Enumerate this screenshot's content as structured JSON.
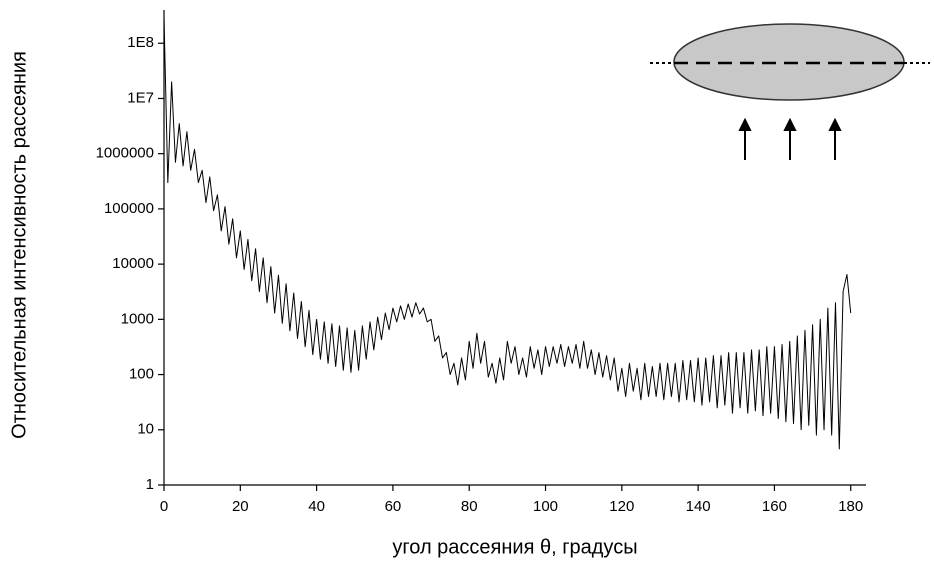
{
  "chart_data": {
    "type": "line",
    "x_label": "угол рассеяния θ, градусы",
    "y_label": "Относительная интенсивность рассеяния",
    "log_y": true,
    "grid": false,
    "x": [
      0,
      1,
      2,
      3,
      4,
      5,
      6,
      7,
      8,
      9,
      10,
      11,
      12,
      13,
      14,
      15,
      16,
      17,
      18,
      19,
      20,
      21,
      22,
      23,
      24,
      25,
      26,
      27,
      28,
      29,
      30,
      31,
      32,
      33,
      34,
      35,
      36,
      37,
      38,
      39,
      40,
      41,
      42,
      43,
      44,
      45,
      46,
      47,
      48,
      49,
      50,
      51,
      52,
      53,
      54,
      55,
      56,
      57,
      58,
      59,
      60,
      61,
      62,
      63,
      64,
      65,
      66,
      67,
      68,
      69,
      70,
      71,
      72,
      73,
      74,
      75,
      76,
      77,
      78,
      79,
      80,
      81,
      82,
      83,
      84,
      85,
      86,
      87,
      88,
      89,
      90,
      91,
      92,
      93,
      94,
      95,
      96,
      97,
      98,
      99,
      100,
      101,
      102,
      103,
      104,
      105,
      106,
      107,
      108,
      109,
      110,
      111,
      112,
      113,
      114,
      115,
      116,
      117,
      118,
      119,
      120,
      121,
      122,
      123,
      124,
      125,
      126,
      127,
      128,
      129,
      130,
      131,
      132,
      133,
      134,
      135,
      136,
      137,
      138,
      139,
      140,
      141,
      142,
      143,
      144,
      145,
      146,
      147,
      148,
      149,
      150,
      151,
      152,
      153,
      154,
      155,
      156,
      157,
      158,
      159,
      160,
      161,
      162,
      163,
      164,
      165,
      166,
      167,
      168,
      169,
      170,
      171,
      172,
      173,
      174,
      175,
      176,
      177,
      178,
      179,
      180
    ],
    "series": [
      {
        "color": "#000000",
        "values": [
          300000000,
          300000,
          20000000,
          700000,
          3500000,
          600000,
          2500000,
          500000,
          1200000,
          300000,
          500000,
          130000,
          380000,
          93000,
          180000,
          40000,
          110000,
          23000,
          66000,
          13000,
          40000,
          8000,
          28000,
          5000,
          19000,
          3200,
          13000,
          2000,
          9000,
          1300,
          6300,
          850,
          4400,
          620,
          3000,
          450,
          2100,
          320,
          1450,
          230,
          1000,
          190,
          900,
          160,
          830,
          140,
          760,
          120,
          700,
          110,
          630,
          120,
          760,
          190,
          900,
          280,
          1100,
          430,
          1300,
          650,
          1600,
          900,
          1750,
          1000,
          1900,
          1100,
          2000,
          1250,
          1600,
          900,
          1000,
          400,
          500,
          200,
          250,
          100,
          160,
          65,
          200,
          80,
          400,
          130,
          560,
          160,
          400,
          90,
          160,
          70,
          200,
          80,
          400,
          160,
          320,
          100,
          200,
          90,
          320,
          130,
          280,
          100,
          320,
          140,
          320,
          160,
          350,
          140,
          320,
          160,
          350,
          130,
          400,
          130,
          280,
          100,
          250,
          90,
          220,
          80,
          200,
          50,
          130,
          40,
          160,
          50,
          130,
          35,
          160,
          40,
          140,
          40,
          160,
          35,
          160,
          40,
          160,
          32,
          180,
          35,
          180,
          32,
          200,
          28,
          200,
          32,
          220,
          25,
          220,
          28,
          250,
          20,
          250,
          25,
          250,
          20,
          280,
          22,
          280,
          18,
          320,
          20,
          320,
          16,
          350,
          14,
          400,
          13,
          500,
          10,
          630,
          12,
          800,
          8,
          1000,
          10,
          1600,
          8,
          2000,
          4.5,
          3200,
          6500,
          1300
        ]
      }
    ],
    "xlim": [
      0,
      184
    ],
    "xticks": [
      0,
      20,
      40,
      60,
      80,
      100,
      120,
      140,
      160,
      180
    ],
    "ylim": [
      1,
      400000000
    ],
    "yticks": [
      1,
      10,
      100,
      1000,
      10000,
      100000,
      1000000,
      {
        "value": 10000000,
        "label": "1E7"
      },
      {
        "value": 100000000,
        "label": "1E8"
      }
    ]
  }
}
